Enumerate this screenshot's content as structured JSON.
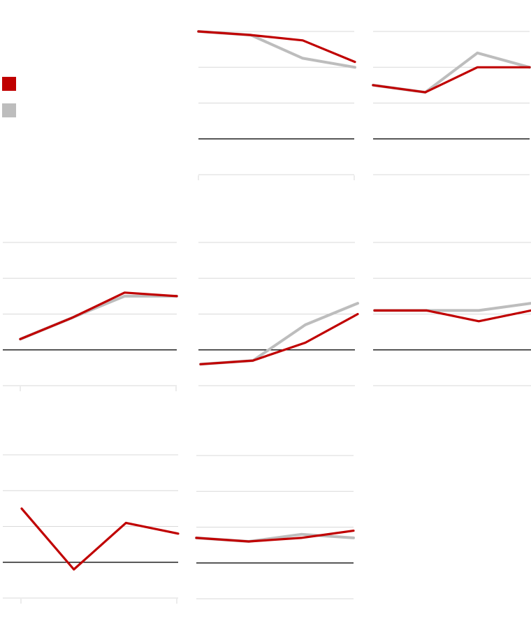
{
  "colors": {
    "primary": "#c00000",
    "secondary": "#bdbdbd",
    "gridline": "#d9d9d9",
    "baseline": "#222222"
  },
  "legend": {
    "items": [
      {
        "label": "",
        "color": "#c00000"
      },
      {
        "label": "",
        "color": "#bdbdbd"
      }
    ]
  },
  "chart_data": [
    {
      "type": "line",
      "panel": "row1-col2",
      "x": [
        0,
        1,
        2,
        3
      ],
      "series": [
        {
          "color": "#c00000",
          "values": [
            3.0,
            2.9,
            2.75,
            2.15
          ]
        },
        {
          "color": "#bdbdbd",
          "values": [
            3.0,
            2.9,
            2.25,
            2.0
          ]
        }
      ],
      "ylim": [
        -1,
        3
      ],
      "yticks": [
        -1,
        0,
        1,
        2,
        3
      ],
      "baseline": 0,
      "grid": true
    },
    {
      "type": "line",
      "panel": "row1-col3",
      "x": [
        0,
        1,
        2,
        3
      ],
      "series": [
        {
          "color": "#c00000",
          "values": [
            1.5,
            1.3,
            2.0,
            2.0
          ]
        },
        {
          "color": "#bdbdbd",
          "values": [
            1.5,
            1.3,
            2.4,
            2.0
          ]
        }
      ],
      "ylim": [
        -1,
        3
      ],
      "yticks": [
        -1,
        0,
        1,
        2,
        3
      ],
      "baseline": 0,
      "grid": true
    },
    {
      "type": "line",
      "panel": "row2-col1",
      "x": [
        0,
        1,
        2,
        3
      ],
      "series": [
        {
          "color": "#c00000",
          "values": [
            0.3,
            0.9,
            1.6,
            1.5
          ]
        },
        {
          "color": "#bdbdbd",
          "values": [
            0.3,
            0.9,
            1.5,
            1.5
          ]
        }
      ],
      "ylim": [
        -1,
        3
      ],
      "yticks": [
        -1,
        0,
        1,
        2,
        3
      ],
      "baseline": 0,
      "grid": true
    },
    {
      "type": "line",
      "panel": "row2-col2",
      "x": [
        0,
        1,
        2,
        3
      ],
      "series": [
        {
          "color": "#c00000",
          "values": [
            -0.4,
            -0.3,
            0.2,
            1.0
          ]
        },
        {
          "color": "#bdbdbd",
          "values": [
            -0.4,
            -0.3,
            0.7,
            1.3
          ]
        }
      ],
      "ylim": [
        -1,
        3
      ],
      "yticks": [
        -1,
        0,
        1,
        2,
        3
      ],
      "baseline": 0,
      "grid": true
    },
    {
      "type": "line",
      "panel": "row2-col3",
      "x": [
        0,
        1,
        2,
        3
      ],
      "series": [
        {
          "color": "#c00000",
          "values": [
            1.1,
            1.1,
            0.8,
            1.1
          ]
        },
        {
          "color": "#bdbdbd",
          "values": [
            1.1,
            1.1,
            1.1,
            1.3
          ]
        }
      ],
      "ylim": [
        -1,
        3
      ],
      "yticks": [
        -1,
        0,
        1,
        2,
        3
      ],
      "baseline": 0,
      "grid": true
    },
    {
      "type": "line",
      "panel": "row3-col1",
      "x": [
        0,
        1,
        2,
        3
      ],
      "series": [
        {
          "color": "#c00000",
          "values": [
            1.5,
            -0.2,
            1.1,
            0.8
          ]
        }
      ],
      "ylim": [
        -1,
        3
      ],
      "yticks": [
        -1,
        0,
        1,
        2,
        3
      ],
      "baseline": 0,
      "grid": true
    },
    {
      "type": "line",
      "panel": "row3-col2",
      "x": [
        0,
        1,
        2,
        3
      ],
      "series": [
        {
          "color": "#c00000",
          "values": [
            0.7,
            0.6,
            0.7,
            0.9
          ]
        },
        {
          "color": "#bdbdbd",
          "values": [
            0.7,
            0.6,
            0.8,
            0.7
          ]
        }
      ],
      "ylim": [
        -1,
        3
      ],
      "yticks": [
        -1,
        0,
        1,
        2,
        3
      ],
      "baseline": 0,
      "grid": true
    }
  ]
}
